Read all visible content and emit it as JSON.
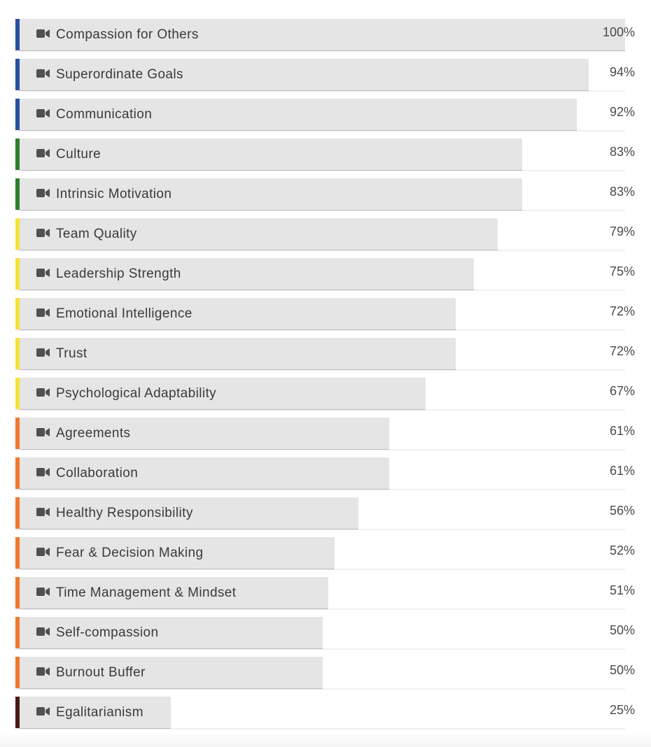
{
  "colors": {
    "blue": "#2a4fa0",
    "green": "#2e7d2e",
    "yellow": "#f5e23a",
    "orange": "#ee7a2e",
    "dark_brown": "#4a1a14",
    "bar_fill": "#e5e5e5",
    "icon": "#505050"
  },
  "icon": "video-camera-icon",
  "chart_data": {
    "type": "bar",
    "orientation": "horizontal",
    "title": "",
    "xlim": [
      0,
      100
    ],
    "categories": [
      "Compassion for Others",
      "Superordinate Goals",
      "Communication",
      "Culture",
      "Intrinsic Motivation",
      "Team Quality",
      "Leadership Strength",
      "Emotional Intelligence",
      "Trust",
      "Psychological Adaptability",
      "Agreements",
      "Collaboration",
      "Healthy Responsibility",
      "Fear & Decision Making",
      "Time Management & Mindset",
      "Self-compassion",
      "Burnout Buffer",
      "Egalitarianism"
    ],
    "values": [
      100,
      94,
      92,
      83,
      83,
      79,
      75,
      72,
      72,
      67,
      61,
      61,
      56,
      52,
      51,
      50,
      50,
      25
    ],
    "value_labels": [
      "100%",
      "94%",
      "92%",
      "83%",
      "83%",
      "79%",
      "75%",
      "72%",
      "72%",
      "67%",
      "61%",
      "61%",
      "56%",
      "52%",
      "51%",
      "50%",
      "50%",
      "25%"
    ],
    "accent_colors": [
      "blue",
      "blue",
      "blue",
      "green",
      "green",
      "yellow",
      "yellow",
      "yellow",
      "yellow",
      "yellow",
      "orange",
      "orange",
      "orange",
      "orange",
      "orange",
      "orange",
      "orange",
      "dark_brown"
    ]
  }
}
